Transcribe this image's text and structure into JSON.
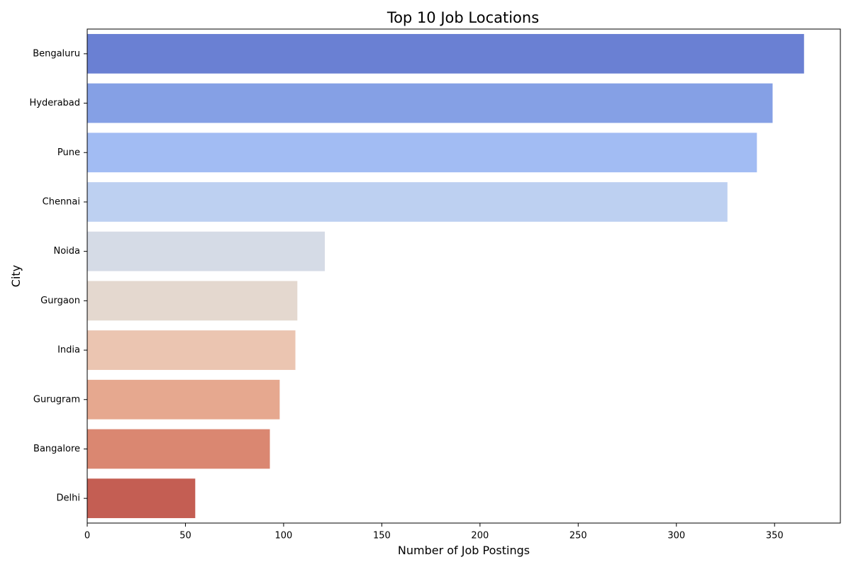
{
  "chart_data": {
    "type": "bar",
    "orientation": "horizontal",
    "title": "Top 10 Job Locations",
    "xlabel": "Number of Job Postings",
    "ylabel": "City",
    "categories": [
      "Bengaluru",
      "Hyderabad",
      "Pune",
      "Chennai",
      "Noida",
      "Gurgaon",
      "India",
      "Gurugram",
      "Bangalore",
      "Delhi"
    ],
    "values": [
      365,
      349,
      341,
      326,
      121,
      107,
      106,
      98,
      93,
      55
    ],
    "colors": [
      "#6a80d3",
      "#85a0e5",
      "#a2bcf3",
      "#bdd0f1",
      "#d5dbe6",
      "#e4d8cf",
      "#ebc5b1",
      "#e6a88f",
      "#da8771",
      "#c45e53"
    ],
    "xlim": [
      0,
      383.5
    ],
    "xticks": [
      0,
      50,
      100,
      150,
      200,
      250,
      300,
      350
    ],
    "grid": false,
    "legend": "none"
  }
}
